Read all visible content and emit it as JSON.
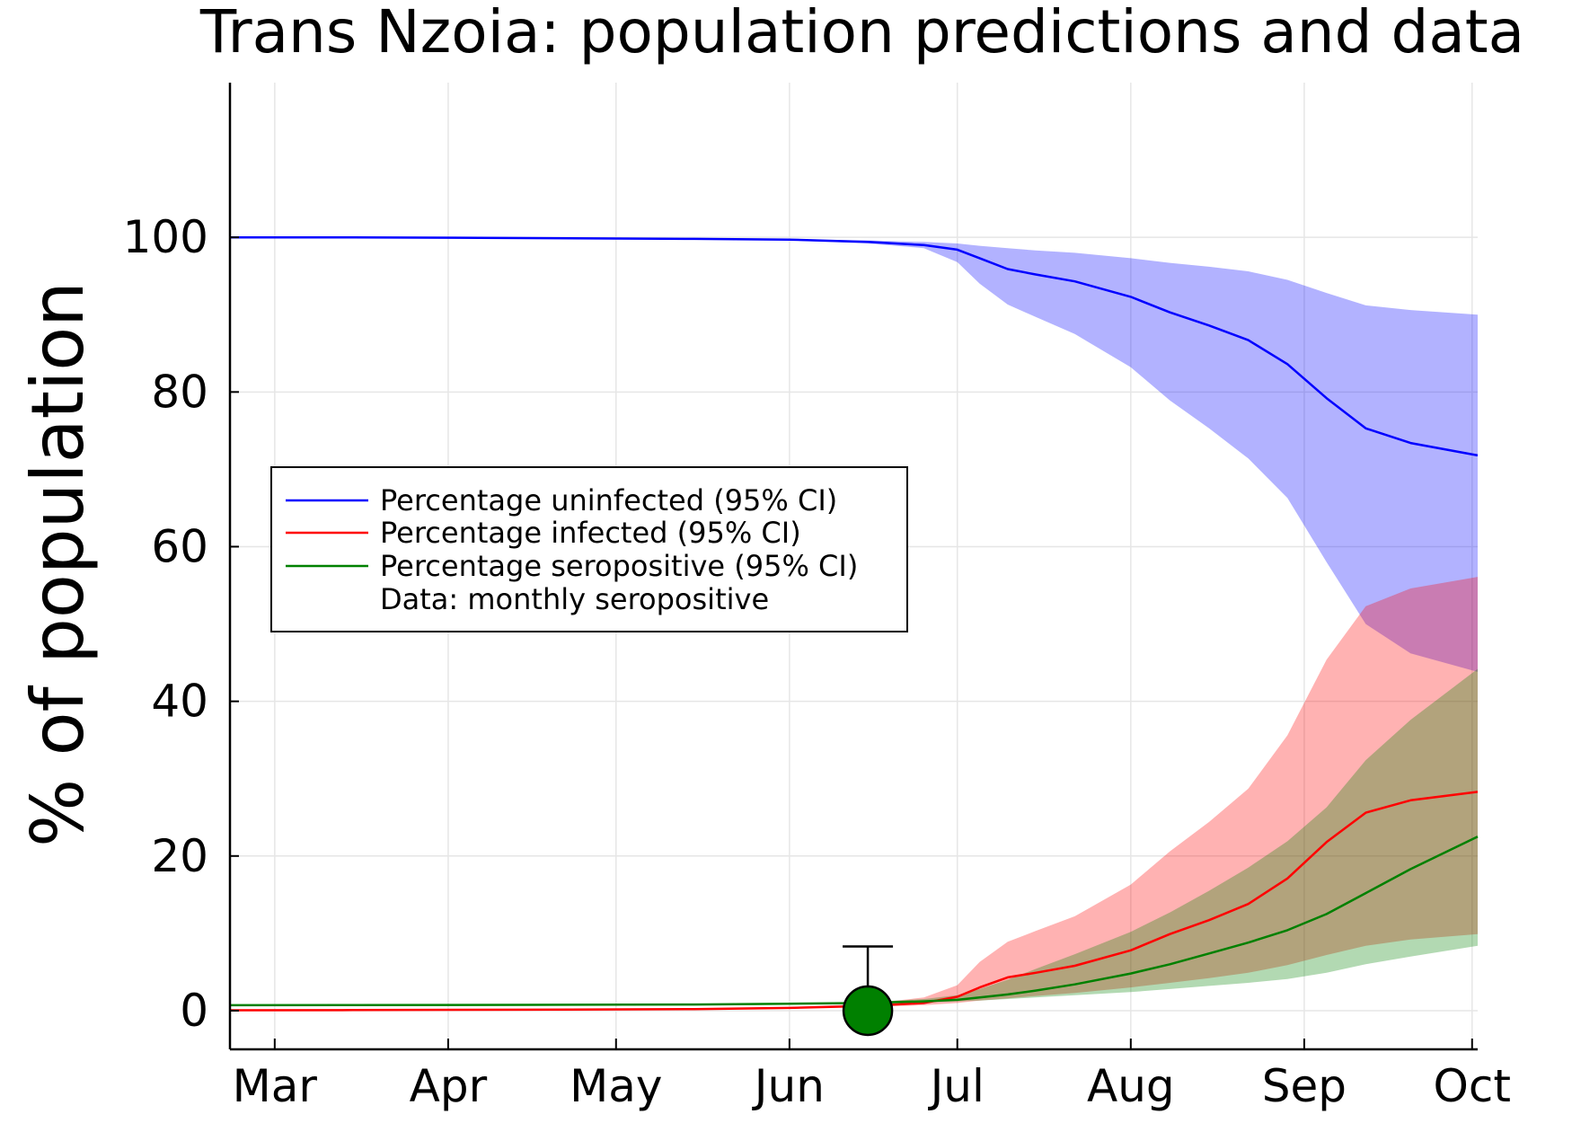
{
  "chart_data": {
    "type": "line",
    "title": "Trans Nzoia: population predictions and data",
    "xlabel": "",
    "ylabel": "% of population",
    "x_tick_labels": [
      "Mar",
      "Apr",
      "May",
      "Jun",
      "Jul",
      "Aug",
      "Sep",
      "Oct"
    ],
    "x_tick_dates": [
      "2020-03-01",
      "2020-04-01",
      "2020-05-01",
      "2020-06-01",
      "2020-07-01",
      "2020-08-01",
      "2020-09-01",
      "2020-10-01"
    ],
    "xlim": [
      "2020-02-22",
      "2020-10-02"
    ],
    "ylim": [
      -5,
      120
    ],
    "y_ticks": [
      0,
      20,
      40,
      60,
      80,
      100
    ],
    "grid": true,
    "legend_position": "left-middle",
    "series": [
      {
        "name": "Percentage uninfected (95% CI)",
        "color": "#0000ff",
        "band_color": "#b3b3ff",
        "x": [
          "2020-02-22",
          "2020-03-15",
          "2020-04-15",
          "2020-05-15",
          "2020-06-01",
          "2020-06-15",
          "2020-06-25",
          "2020-07-01",
          "2020-07-05",
          "2020-07-10",
          "2020-07-15",
          "2020-07-22",
          "2020-08-01",
          "2020-08-08",
          "2020-08-15",
          "2020-08-22",
          "2020-08-29",
          "2020-09-05",
          "2020-09-12",
          "2020-09-20",
          "2020-10-02"
        ],
        "values": [
          100,
          100,
          99.9,
          99.8,
          99.7,
          99.4,
          99.0,
          98.4,
          97.3,
          95.9,
          95.2,
          94.3,
          92.3,
          90.3,
          88.6,
          86.7,
          83.6,
          79.2,
          75.3,
          73.4,
          71.8
        ],
        "lower": [
          100,
          100,
          99.9,
          99.8,
          99.6,
          99.2,
          98.6,
          96.8,
          94.0,
          91.3,
          89.7,
          87.5,
          83.2,
          78.9,
          75.3,
          71.4,
          66.3,
          58.0,
          50.0,
          46.2,
          43.8
        ],
        "upper": [
          100,
          100,
          99.9,
          99.8,
          99.7,
          99.6,
          99.4,
          99.2,
          98.9,
          98.6,
          98.3,
          98.0,
          97.3,
          96.7,
          96.2,
          95.6,
          94.5,
          92.8,
          91.2,
          90.6,
          90.0
        ]
      },
      {
        "name": "Percentage infected (95% CI)",
        "color": "#ff0000",
        "band_color": "#ffb3b3",
        "x": [
          "2020-02-22",
          "2020-03-15",
          "2020-04-15",
          "2020-05-15",
          "2020-06-01",
          "2020-06-15",
          "2020-06-25",
          "2020-07-01",
          "2020-07-05",
          "2020-07-10",
          "2020-07-15",
          "2020-07-22",
          "2020-08-01",
          "2020-08-08",
          "2020-08-15",
          "2020-08-22",
          "2020-08-29",
          "2020-09-05",
          "2020-09-12",
          "2020-09-20",
          "2020-10-02"
        ],
        "values": [
          0.05,
          0.08,
          0.12,
          0.2,
          0.35,
          0.6,
          1.0,
          1.8,
          3.0,
          4.3,
          4.9,
          5.8,
          7.8,
          9.9,
          11.7,
          13.8,
          17.1,
          21.8,
          25.6,
          27.2,
          28.3
        ],
        "lower": [
          0.05,
          0.08,
          0.1,
          0.17,
          0.3,
          0.5,
          0.7,
          1.0,
          1.3,
          1.6,
          1.9,
          2.3,
          3.0,
          3.6,
          4.2,
          4.9,
          5.9,
          7.2,
          8.4,
          9.2,
          9.9
        ],
        "upper": [
          0.06,
          0.1,
          0.15,
          0.25,
          0.45,
          0.9,
          1.7,
          3.3,
          6.3,
          8.9,
          10.3,
          12.2,
          16.3,
          20.6,
          24.4,
          28.7,
          35.6,
          45.4,
          52.3,
          54.6,
          56.1
        ]
      },
      {
        "name": "Percentage seropositive (95% CI)",
        "color": "#008000",
        "band_color": "#80bf80",
        "x": [
          "2020-02-22",
          "2020-03-15",
          "2020-04-15",
          "2020-05-15",
          "2020-06-01",
          "2020-06-15",
          "2020-06-25",
          "2020-07-01",
          "2020-07-05",
          "2020-07-10",
          "2020-07-15",
          "2020-07-22",
          "2020-08-01",
          "2020-08-08",
          "2020-08-15",
          "2020-08-22",
          "2020-08-29",
          "2020-09-05",
          "2020-09-12",
          "2020-09-20",
          "2020-10-02"
        ],
        "values": [
          0.7,
          0.72,
          0.75,
          0.8,
          0.9,
          1.0,
          1.2,
          1.4,
          1.7,
          2.1,
          2.6,
          3.4,
          4.8,
          6.0,
          7.4,
          8.8,
          10.4,
          12.5,
          15.2,
          18.3,
          22.5
        ],
        "lower": [
          0.7,
          0.72,
          0.75,
          0.8,
          0.9,
          1.0,
          1.1,
          1.2,
          1.3,
          1.5,
          1.7,
          2.0,
          2.4,
          2.8,
          3.2,
          3.6,
          4.1,
          4.9,
          6.0,
          7.0,
          8.4
        ],
        "upper": [
          0.72,
          0.74,
          0.78,
          0.85,
          0.95,
          1.1,
          1.5,
          2.0,
          2.8,
          4.0,
          5.4,
          7.3,
          10.2,
          12.7,
          15.5,
          18.5,
          21.9,
          26.3,
          32.4,
          37.6,
          44.2
        ]
      }
    ],
    "data_points": {
      "name": "Data: monthly seropositive",
      "color": "#008000",
      "points": [
        {
          "x": "2020-06-15",
          "y": 0,
          "err_low": 0,
          "err_high": 8.3
        }
      ]
    }
  }
}
